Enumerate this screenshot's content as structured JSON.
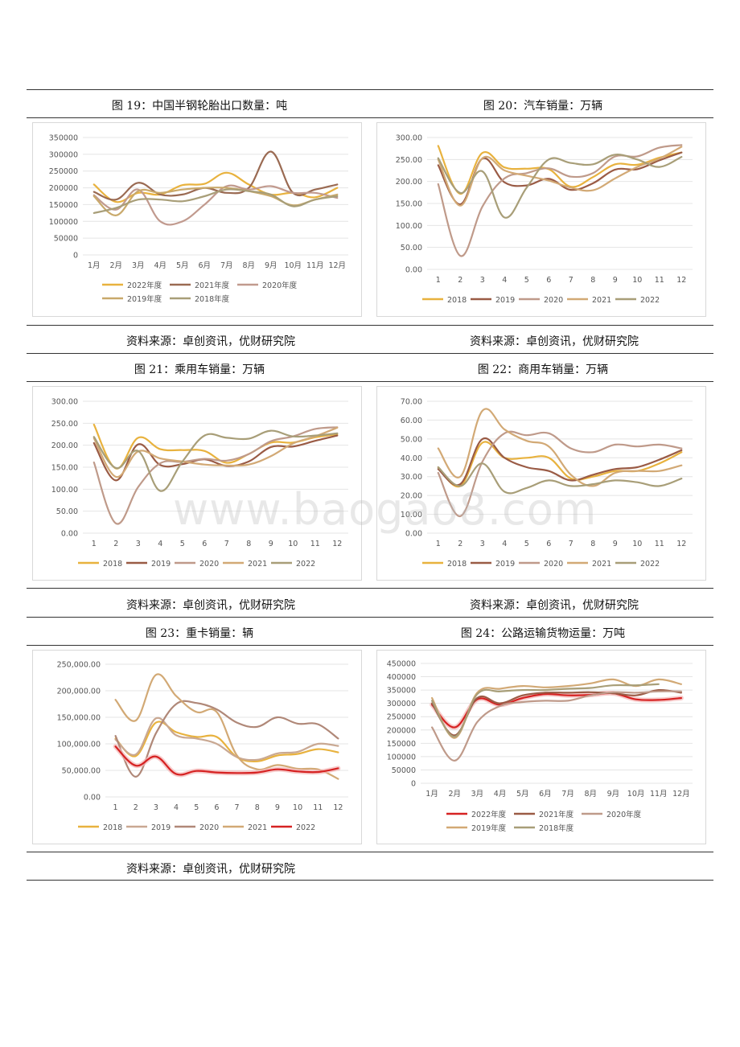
{
  "watermark": "www.baogao8.com",
  "rows": [
    {
      "left": {
        "title": "图 19：中国半钢轮胎出口数量：吨",
        "source": "资料来源：卓创资讯，优财研究院"
      },
      "right": {
        "title": "图 20：汽车销量：万辆",
        "source": "资料来源：卓创资讯，优财研究院"
      }
    },
    {
      "left": {
        "title": "图 21：乘用车销量：万辆",
        "source": "资料来源：卓创资讯，优财研究院"
      },
      "right": {
        "title": "图 22：商用车销量：万辆",
        "source": "资料来源：卓创资讯，优财研究院"
      }
    },
    {
      "left": {
        "title": "图 23：重卡销量：辆",
        "source": "资料来源：卓创资讯，优财研究院"
      },
      "right": {
        "title": "图 24：公路运输货物运量：万吨",
        "source": ""
      }
    }
  ],
  "chart_data": [
    {
      "type": "line",
      "title": "图 19：中国半钢轮胎出口数量：吨",
      "categories": [
        "1月",
        "2月",
        "3月",
        "4月",
        "5月",
        "6月",
        "7月",
        "8月",
        "9月",
        "10月",
        "11月",
        "12月"
      ],
      "ylim": [
        0,
        350000
      ],
      "yticks": [
        "0",
        "50000",
        "100000",
        "150000",
        "200000",
        "250000",
        "300000",
        "350000"
      ],
      "legend_position": "bottom",
      "series": [
        {
          "name": "2022年度",
          "color": "#E8B23E",
          "values": [
            210000,
            158000,
            185000,
            180000,
            208000,
            212000,
            245000,
            210000,
            180000,
            185000,
            172000,
            200000
          ]
        },
        {
          "name": "2021年度",
          "color": "#9A6A52",
          "values": [
            188000,
            165000,
            215000,
            180000,
            180000,
            200000,
            185000,
            200000,
            308000,
            185000,
            195000,
            210000
          ]
        },
        {
          "name": "2020年度",
          "color": "#C19A8E",
          "values": [
            178000,
            135000,
            195000,
            100000,
            100000,
            150000,
            205000,
            195000,
            205000,
            185000,
            185000,
            170000
          ]
        },
        {
          "name": "2019年度",
          "color": "#C9A96B",
          "values": [
            175000,
            118000,
            190000,
            185000,
            195000,
            200000,
            200000,
            190000,
            175000,
            148000,
            165000,
            180000
          ]
        },
        {
          "name": "2018年度",
          "color": "#A89E78",
          "values": [
            125000,
            140000,
            165000,
            165000,
            160000,
            175000,
            195000,
            190000,
            180000,
            145000,
            165000,
            175000
          ]
        }
      ]
    },
    {
      "type": "line",
      "title": "图 20：汽车销量：万辆",
      "categories": [
        "1",
        "2",
        "3",
        "4",
        "5",
        "6",
        "7",
        "8",
        "9",
        "10",
        "11",
        "12"
      ],
      "ylim": [
        0,
        300
      ],
      "yticks": [
        "0.00",
        "50.00",
        "100.00",
        "150.00",
        "200.00",
        "250.00",
        "300.00"
      ],
      "legend_position": "bottom",
      "series": [
        {
          "name": "2018",
          "color": "#E8B23E",
          "values": [
            281,
            172,
            265,
            232,
            229,
            228,
            188,
            210,
            239,
            238,
            254,
            266
          ]
        },
        {
          "name": "2019",
          "color": "#9A5B45",
          "values": [
            237,
            148,
            252,
            198,
            191,
            206,
            181,
            196,
            227,
            228,
            248,
            266
          ]
        },
        {
          "name": "2020",
          "color": "#BF9A8A",
          "values": [
            194,
            31,
            143,
            207,
            219,
            230,
            211,
            219,
            257,
            257,
            277,
            283
          ]
        },
        {
          "name": "2021",
          "color": "#D2A975",
          "values": [
            250,
            145,
            253,
            225,
            213,
            202,
            186,
            180,
            207,
            233,
            252,
            279
          ]
        },
        {
          "name": "2022",
          "color": "#A89E78",
          "values": [
            253,
            174,
            223,
            118,
            186,
            250,
            242,
            239,
            261,
            250,
            233,
            256
          ]
        }
      ]
    },
    {
      "type": "line",
      "title": "图 21：乘用车销量：万辆",
      "categories": [
        "1",
        "2",
        "3",
        "4",
        "5",
        "6",
        "7",
        "8",
        "9",
        "10",
        "11",
        "12"
      ],
      "ylim": [
        0,
        300
      ],
      "yticks": [
        "0.00",
        "50.00",
        "100.00",
        "150.00",
        "200.00",
        "250.00",
        "300.00"
      ],
      "legend_position": "bottom",
      "series": [
        {
          "name": "2018",
          "color": "#E8B23E",
          "values": [
            247,
            147,
            217,
            191,
            189,
            187,
            160,
            180,
            206,
            206,
            218,
            225
          ]
        },
        {
          "name": "2019",
          "color": "#9A5B45",
          "values": [
            205,
            120,
            202,
            155,
            157,
            168,
            153,
            163,
            196,
            197,
            210,
            222
          ]
        },
        {
          "name": "2020",
          "color": "#BF9A8A",
          "values": [
            161,
            22,
            105,
            159,
            162,
            169,
            165,
            180,
            209,
            220,
            237,
            241
          ]
        },
        {
          "name": "2021",
          "color": "#D2A975",
          "values": [
            216,
            128,
            186,
            170,
            163,
            156,
            154,
            156,
            175,
            204,
            220,
            240
          ]
        },
        {
          "name": "2022",
          "color": "#A89E78",
          "values": [
            219,
            148,
            187,
            96,
            163,
            222,
            217,
            215,
            233,
            220,
            222,
            227
          ]
        }
      ]
    },
    {
      "type": "line",
      "title": "图 22：商用车销量：万辆",
      "categories": [
        "1",
        "2",
        "3",
        "4",
        "5",
        "6",
        "7",
        "8",
        "9",
        "10",
        "11",
        "12"
      ],
      "ylim": [
        0,
        70
      ],
      "yticks": [
        "0.00",
        "10.00",
        "20.00",
        "30.00",
        "40.00",
        "50.00",
        "60.00",
        "70.00"
      ],
      "legend_position": "bottom",
      "series": [
        {
          "name": "2018",
          "color": "#E8B23E",
          "values": [
            35,
            25,
            48,
            40,
            40,
            40,
            29,
            30,
            33,
            33,
            37,
            43
          ]
        },
        {
          "name": "2019",
          "color": "#9A5B45",
          "values": [
            34,
            26,
            50,
            40,
            35,
            33,
            28,
            31,
            34,
            35,
            39,
            44
          ]
        },
        {
          "name": "2020",
          "color": "#BF9A8A",
          "values": [
            32,
            9,
            38,
            53,
            52,
            53,
            45,
            43,
            47,
            46,
            47,
            45
          ]
        },
        {
          "name": "2021",
          "color": "#D2A975",
          "values": [
            45,
            30,
            65,
            55,
            49,
            46,
            31,
            25,
            32,
            33,
            33,
            36
          ]
        },
        {
          "name": "2022",
          "color": "#A89E78",
          "values": [
            35,
            25,
            37,
            22,
            24,
            28,
            25,
            26,
            28,
            27,
            25,
            29
          ]
        }
      ]
    },
    {
      "type": "line",
      "title": "图 23：重卡销量：辆",
      "categories": [
        "1",
        "2",
        "3",
        "4",
        "5",
        "6",
        "7",
        "8",
        "9",
        "10",
        "11",
        "12"
      ],
      "ylim": [
        0,
        250000
      ],
      "yticks": [
        "0.00",
        "50,000.00",
        "100,000.00",
        "150,000.00",
        "200,000.00",
        "250,000.00"
      ],
      "legend_position": "bottom",
      "series": [
        {
          "name": "2018",
          "color": "#E8B23E",
          "values": [
            110000,
            77000,
            140000,
            122000,
            113000,
            113000,
            75000,
            67000,
            78000,
            81000,
            90000,
            84000
          ]
        },
        {
          "name": "2019",
          "color": "#C9A892",
          "values": [
            108000,
            80000,
            148000,
            116000,
            110000,
            100000,
            75000,
            70000,
            82000,
            85000,
            100000,
            96000
          ]
        },
        {
          "name": "2020",
          "color": "#B08878",
          "values": [
            115000,
            38000,
            120000,
            175000,
            177000,
            165000,
            140000,
            132000,
            150000,
            138000,
            137000,
            110000
          ]
        },
        {
          "name": "2021",
          "color": "#D2A975",
          "values": [
            183000,
            144000,
            230000,
            190000,
            160000,
            160000,
            78000,
            52000,
            60000,
            53000,
            52000,
            34000
          ]
        },
        {
          "name": "2022",
          "color": "#D62222",
          "values": [
            95000,
            59000,
            76000,
            43000,
            49000,
            46000,
            45000,
            46000,
            52000,
            48000,
            47000,
            54000
          ]
        }
      ]
    },
    {
      "type": "line",
      "title": "图 24：公路运输货物运量：万吨",
      "categories": [
        "1月",
        "2月",
        "3月",
        "4月",
        "5月",
        "6月",
        "7月",
        "8月",
        "9月",
        "10月",
        "11月",
        "12月"
      ],
      "ylim": [
        0,
        450000
      ],
      "yticks": [
        "0",
        "50000",
        "100000",
        "150000",
        "200000",
        "250000",
        "300000",
        "350000",
        "400000",
        "450000"
      ],
      "legend_position": "bottom",
      "series": [
        {
          "name": "2022年度",
          "color": "#D62222",
          "values": [
            295000,
            210000,
            315000,
            295000,
            320000,
            335000,
            330000,
            332000,
            338000,
            315000,
            313000,
            320000
          ]
        },
        {
          "name": "2021年度",
          "color": "#9A5B45",
          "values": [
            300000,
            180000,
            320000,
            300000,
            330000,
            340000,
            340000,
            342000,
            338000,
            330000,
            350000,
            340000
          ]
        },
        {
          "name": "2020年度",
          "color": "#BF9A8A",
          "values": [
            210000,
            85000,
            230000,
            290000,
            305000,
            310000,
            310000,
            330000,
            342000,
            340000,
            345000,
            345000
          ]
        },
        {
          "name": "2019年度",
          "color": "#D2A975",
          "values": [
            320000,
            170000,
            340000,
            355000,
            365000,
            360000,
            365000,
            375000,
            390000,
            365000,
            390000,
            372000
          ]
        },
        {
          "name": "2018年度",
          "color": "#A89E78",
          "values": [
            310000,
            175000,
            335000,
            345000,
            350000,
            350000,
            355000,
            358000,
            368000,
            368000,
            372000,
            null
          ]
        }
      ]
    }
  ]
}
